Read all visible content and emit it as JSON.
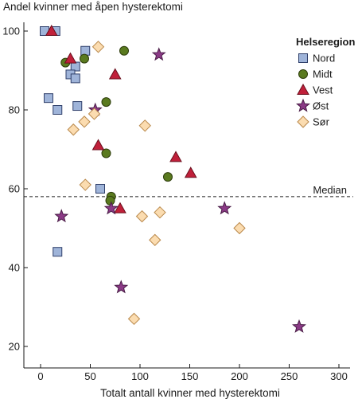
{
  "chart_data": {
    "type": "scatter",
    "title": "",
    "ylabel": "Andel kvinner med åpen hysterektomi",
    "xlabel": "Totalt antall kvinner med hysterektomi",
    "xlim": [
      0,
      300
    ],
    "ylim": [
      20,
      100
    ],
    "xticks": [
      0,
      50,
      100,
      150,
      200,
      250,
      300
    ],
    "yticks": [
      20,
      40,
      60,
      80,
      100
    ],
    "grid": false,
    "legend": {
      "title": "Helseregion",
      "position": "top-right"
    },
    "reference_line": {
      "label": "Median",
      "y": 58,
      "style": "dashed"
    },
    "series": [
      {
        "name": "Nord",
        "marker": "square",
        "color": "#9fb4d9",
        "points": [
          {
            "x": 4,
            "y": 100
          },
          {
            "x": 15,
            "y": 100
          },
          {
            "x": 45,
            "y": 95
          },
          {
            "x": 35,
            "y": 91
          },
          {
            "x": 30,
            "y": 89
          },
          {
            "x": 35,
            "y": 88
          },
          {
            "x": 8,
            "y": 83
          },
          {
            "x": 37,
            "y": 81
          },
          {
            "x": 17,
            "y": 80
          },
          {
            "x": 60,
            "y": 60
          },
          {
            "x": 17,
            "y": 44
          }
        ]
      },
      {
        "name": "Midt",
        "marker": "circle",
        "color": "#5a7a1f",
        "points": [
          {
            "x": 84,
            "y": 95
          },
          {
            "x": 25,
            "y": 92
          },
          {
            "x": 44,
            "y": 93
          },
          {
            "x": 66,
            "y": 82
          },
          {
            "x": 66,
            "y": 69
          },
          {
            "x": 128,
            "y": 63
          },
          {
            "x": 71,
            "y": 58
          },
          {
            "x": 70,
            "y": 57
          }
        ]
      },
      {
        "name": "Vest",
        "marker": "triangle",
        "color": "#c0203a",
        "points": [
          {
            "x": 11,
            "y": 100
          },
          {
            "x": 30,
            "y": 93
          },
          {
            "x": 75,
            "y": 89
          },
          {
            "x": 58,
            "y": 71
          },
          {
            "x": 136,
            "y": 68
          },
          {
            "x": 151,
            "y": 64
          },
          {
            "x": 80,
            "y": 55
          }
        ]
      },
      {
        "name": "Øst",
        "marker": "star",
        "color": "#8b3a86",
        "points": [
          {
            "x": 119,
            "y": 94
          },
          {
            "x": 55,
            "y": 80
          },
          {
            "x": 71,
            "y": 55
          },
          {
            "x": 21,
            "y": 53
          },
          {
            "x": 185,
            "y": 55
          },
          {
            "x": 81,
            "y": 35
          },
          {
            "x": 260,
            "y": 25
          }
        ]
      },
      {
        "name": "Sør",
        "marker": "diamond",
        "color": "#fbdcb0",
        "points": [
          {
            "x": 58,
            "y": 96
          },
          {
            "x": 54,
            "y": 79
          },
          {
            "x": 44,
            "y": 77
          },
          {
            "x": 33,
            "y": 75
          },
          {
            "x": 105,
            "y": 76
          },
          {
            "x": 45,
            "y": 61
          },
          {
            "x": 120,
            "y": 54
          },
          {
            "x": 102,
            "y": 53
          },
          {
            "x": 115,
            "y": 47
          },
          {
            "x": 200,
            "y": 50
          },
          {
            "x": 94,
            "y": 27
          }
        ]
      }
    ]
  },
  "colors": {
    "square_stroke": "#2f3f6a",
    "circle_stroke": "#2e3d0c",
    "triangle_stroke": "#6a0f1d",
    "star_stroke": "#4a1c47",
    "diamond_stroke": "#b9884a",
    "axis": "#1a1a1a"
  }
}
